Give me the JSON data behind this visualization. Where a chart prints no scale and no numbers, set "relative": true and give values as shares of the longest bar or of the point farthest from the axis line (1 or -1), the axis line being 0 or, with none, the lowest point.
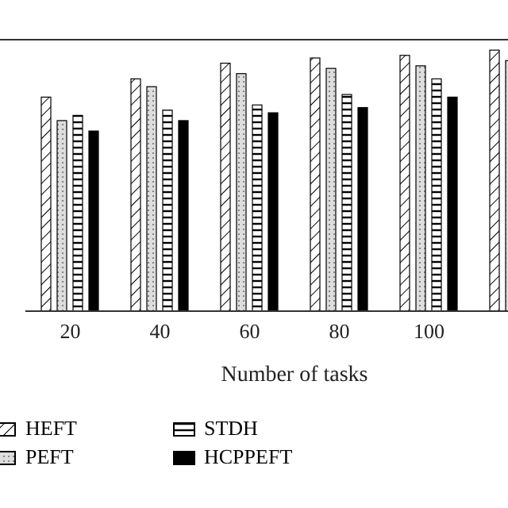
{
  "chart_data": {
    "type": "bar",
    "relative": true,
    "xlabel": "Number of tasks",
    "categories": [
      "20",
      "40",
      "60",
      "80",
      "100",
      null
    ],
    "series": [
      {
        "name": "HEFT",
        "color": "#000000",
        "values": [
          0.82,
          0.89,
          0.95,
          0.97,
          0.98,
          1
        ]
      },
      {
        "name": "PEFT",
        "color": "#000000",
        "values": [
          0.73,
          0.86,
          0.91,
          0.93,
          0.94,
          0.96
        ]
      },
      {
        "name": "STDH",
        "color": "#000000",
        "values": [
          0.75,
          0.77,
          0.79,
          0.83,
          0.89,
          null
        ]
      },
      {
        "name": "HCPPEFT",
        "color": "#000000",
        "values": [
          0.69,
          0.73,
          0.76,
          0.78,
          0.82,
          null
        ]
      }
    ],
    "legend": "bottom"
  }
}
